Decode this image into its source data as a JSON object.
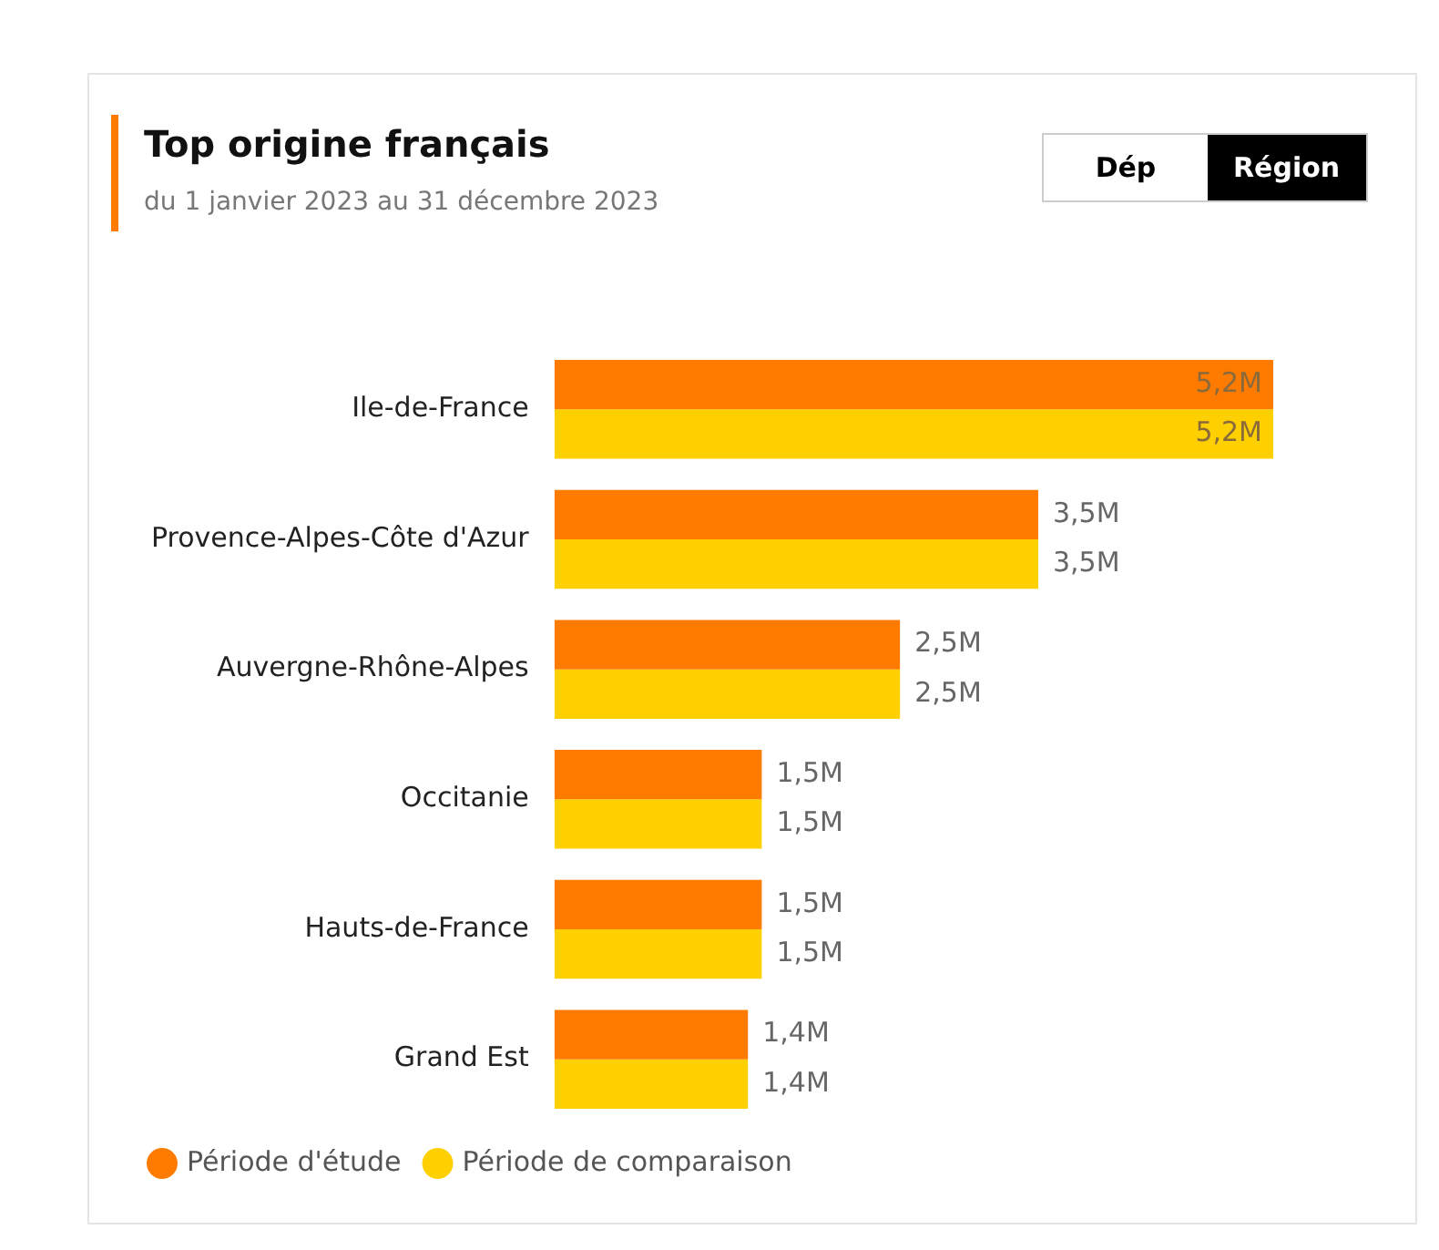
{
  "chart_data": {
    "type": "bar",
    "orientation": "horizontal",
    "title": "Top origine français",
    "subtitle": "du 1 janvier 2023 au 31 décembre 2023",
    "annotations": [
      "Dép",
      "Région"
    ],
    "categories": [
      "Ile-de-France",
      "Provence-Alpes-Côte d'Azur",
      "Auvergne-Rhône-Alpes",
      "Occitanie",
      "Hauts-de-France",
      "Grand Est"
    ],
    "series": [
      {
        "name": "Période d'étude",
        "color": "#ff7b00",
        "values": [
          5.2,
          3.5,
          2.5,
          1.5,
          1.5,
          1.4
        ],
        "value_labels": [
          "5,2M",
          "3,5M",
          "2,5M",
          "1,5M",
          "1,5M",
          "1,4M"
        ]
      },
      {
        "name": "Période de comparaison",
        "color": "#ffd000",
        "values": [
          5.2,
          3.5,
          2.5,
          1.5,
          1.5,
          1.4
        ],
        "value_labels": [
          "5,2M",
          "3,5M",
          "2,5M",
          "1,5M",
          "1,5M",
          "1,4M"
        ]
      }
    ],
    "legend": "bottom left",
    "grid": false
  }
}
